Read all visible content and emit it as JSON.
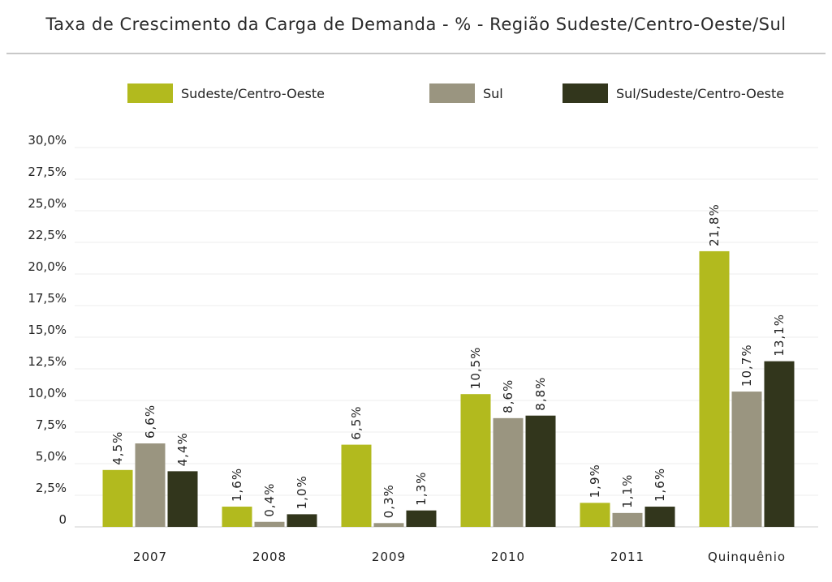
{
  "chart_data": {
    "type": "bar",
    "title": "Taxa de Crescimento da Carga de Demanda - % - Região Sudeste/Centro-Oeste/Sul",
    "categories": [
      "2007",
      "2008",
      "2009",
      "2010",
      "2011",
      "Quinquênio"
    ],
    "series": [
      {
        "name": "Sudeste/Centro-Oeste",
        "color": "#b2ba1e",
        "values": [
          4.5,
          1.6,
          6.5,
          10.5,
          1.9,
          21.8
        ],
        "labels": [
          "4,5%",
          "1,6%",
          "6,5%",
          "10,5%",
          "1,9%",
          "21,8%"
        ]
      },
      {
        "name": "Sul",
        "color": "#9a9580",
        "values": [
          6.6,
          0.4,
          0.3,
          8.6,
          1.1,
          10.7
        ],
        "labels": [
          "6,6%",
          "0,4%",
          "0,3%",
          "8,6%",
          "1,1%",
          "10,7%"
        ]
      },
      {
        "name": "Sul/Sudeste/Centro-Oeste",
        "color": "#32361c",
        "values": [
          4.4,
          1.0,
          1.3,
          8.8,
          1.6,
          13.1
        ],
        "labels": [
          "4,4%",
          "1,0%",
          "1,3%",
          "8,8%",
          "1,6%",
          "13,1%"
        ]
      }
    ],
    "ylim": [
      0,
      30
    ],
    "yticks": [
      0,
      2.5,
      5,
      7.5,
      10,
      12.5,
      15,
      17.5,
      20,
      22.5,
      25,
      27.5,
      30
    ],
    "ytick_labels": [
      "0",
      "2,5%",
      "5,0%",
      "7,5%",
      "10,0%",
      "12,5%",
      "15,0%",
      "17,5%",
      "20,0%",
      "22,5%",
      "25,0%",
      "27,5%",
      "30,0%"
    ],
    "xlabel": "",
    "ylabel": "",
    "grid": true,
    "legend": "top"
  }
}
